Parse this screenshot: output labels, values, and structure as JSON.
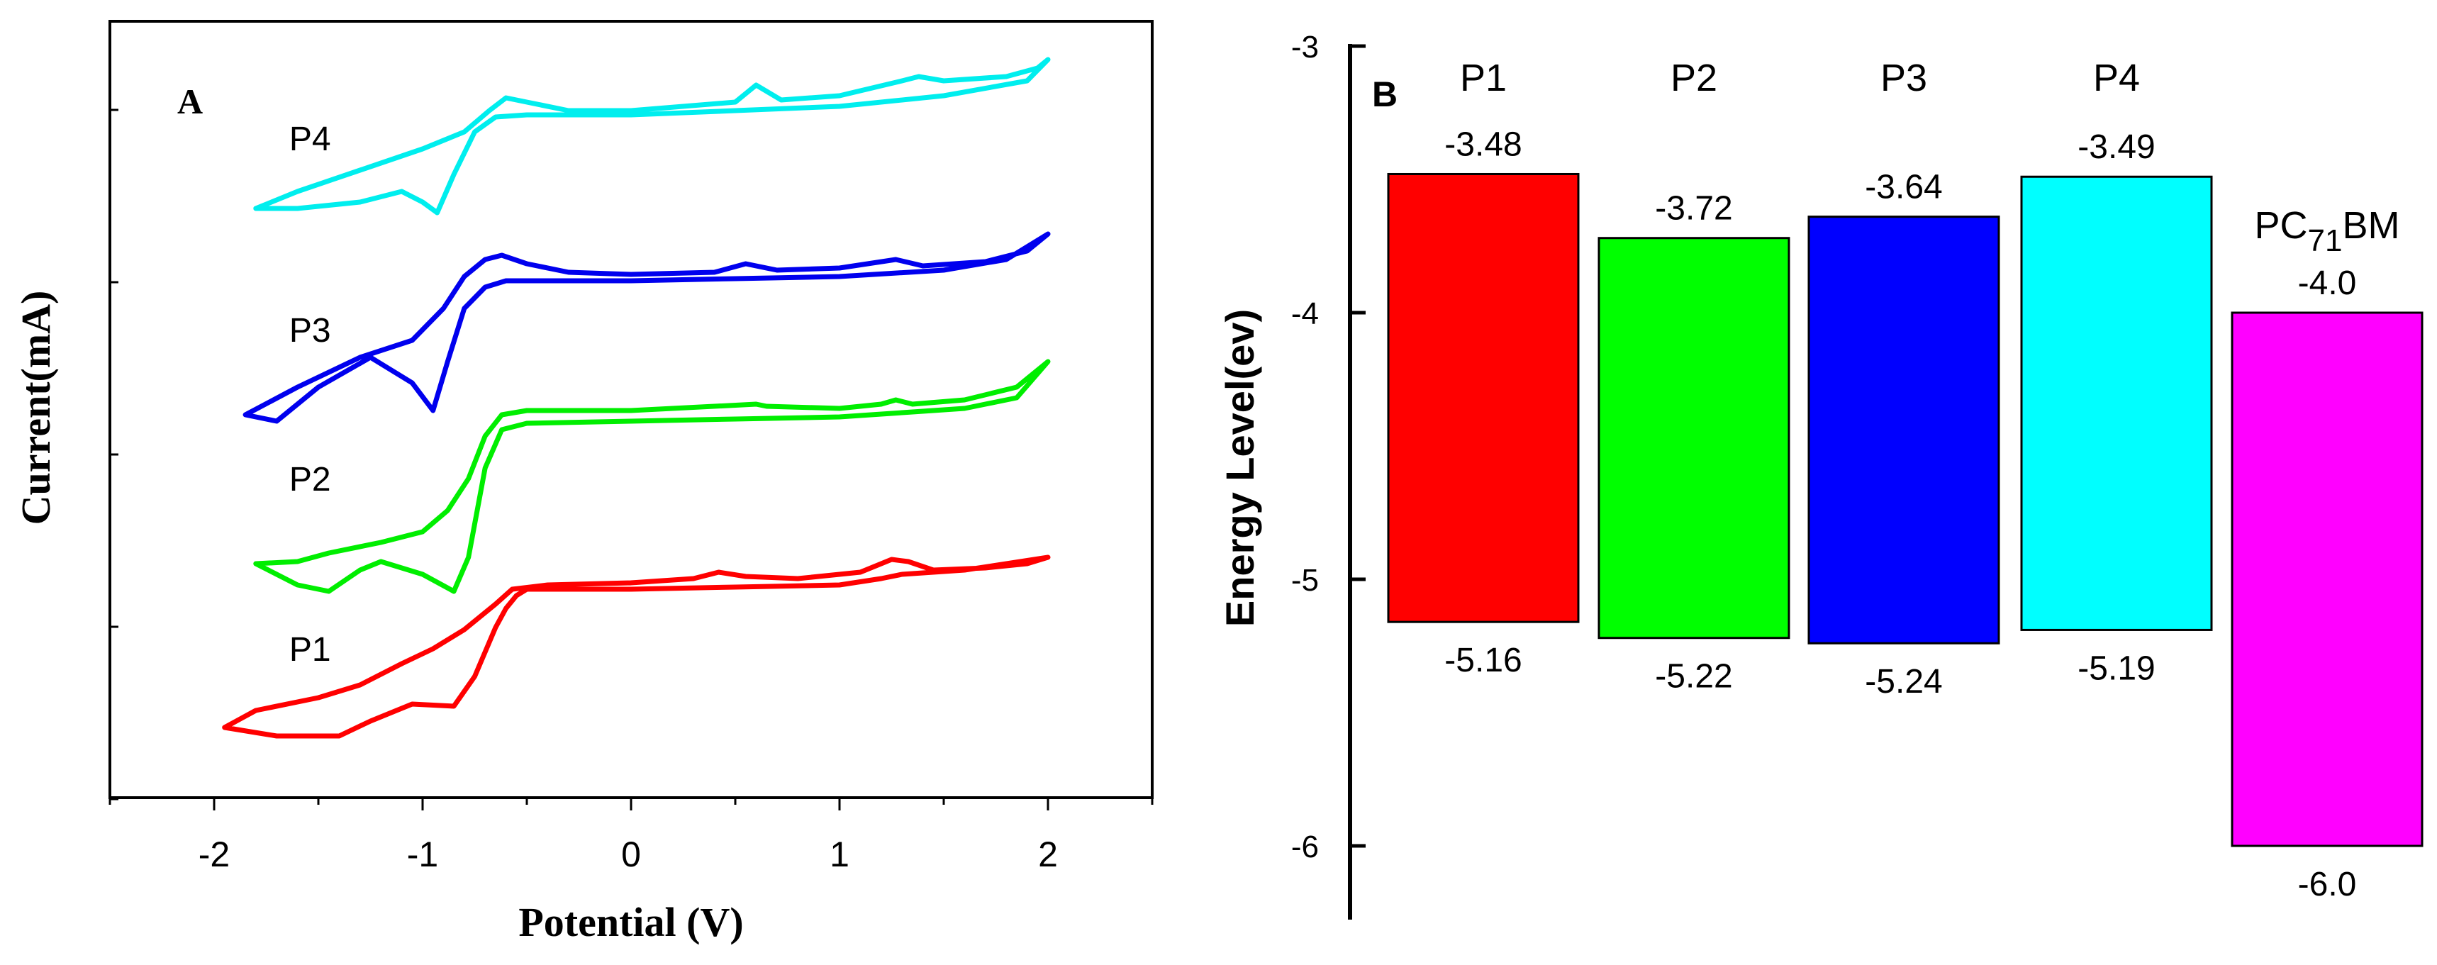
{
  "chart_data": [
    {
      "type": "line",
      "panel_label": "A",
      "xlabel": "Potential (V)",
      "ylabel": "Current(mA)",
      "xlim": [
        -2.5,
        2.5
      ],
      "x_ticks": [
        "-2",
        "-1",
        "0",
        "1",
        "2"
      ],
      "y_tick_labels_shown": false,
      "grid": false,
      "series": [
        {
          "name": "P1",
          "color": "#ff0000",
          "upper": [
            [
              -1.95,
              -0.92
            ],
            [
              -1.8,
              -0.84
            ],
            [
              -1.5,
              -0.78
            ],
            [
              -1.3,
              -0.72
            ],
            [
              -1.1,
              -0.62
            ],
            [
              -0.95,
              -0.55
            ],
            [
              -0.8,
              -0.46
            ],
            [
              -0.65,
              -0.34
            ],
            [
              -0.57,
              -0.27
            ],
            [
              -0.4,
              -0.25
            ],
            [
              0,
              -0.24
            ],
            [
              0.3,
              -0.22
            ],
            [
              0.42,
              -0.19
            ],
            [
              0.55,
              -0.21
            ],
            [
              0.8,
              -0.22
            ],
            [
              1.1,
              -0.19
            ],
            [
              1.25,
              -0.13
            ],
            [
              1.33,
              -0.14
            ],
            [
              1.45,
              -0.18
            ],
            [
              1.7,
              -0.17
            ],
            [
              1.9,
              -0.15
            ],
            [
              2.0,
              -0.12
            ]
          ],
          "lower": [
            [
              -1.95,
              -0.92
            ],
            [
              -1.7,
              -0.96
            ],
            [
              -1.4,
              -0.96
            ],
            [
              -1.25,
              -0.89
            ],
            [
              -1.05,
              -0.81
            ],
            [
              -0.85,
              -0.82
            ],
            [
              -0.75,
              -0.68
            ],
            [
              -0.65,
              -0.45
            ],
            [
              -0.6,
              -0.36
            ],
            [
              -0.55,
              -0.3
            ],
            [
              -0.5,
              -0.27
            ],
            [
              0,
              -0.27
            ],
            [
              0.5,
              -0.26
            ],
            [
              1.0,
              -0.25
            ],
            [
              1.2,
              -0.22
            ],
            [
              1.3,
              -0.2
            ],
            [
              1.6,
              -0.18
            ],
            [
              2.0,
              -0.12
            ]
          ]
        },
        {
          "name": "P2",
          "color": "#00ee00",
          "upper": [
            [
              -1.8,
              -0.15
            ],
            [
              -1.6,
              -0.14
            ],
            [
              -1.45,
              -0.1
            ],
            [
              -1.2,
              -0.05
            ],
            [
              -1.0,
              0.0
            ],
            [
              -0.88,
              0.1
            ],
            [
              -0.78,
              0.25
            ],
            [
              -0.7,
              0.45
            ],
            [
              -0.62,
              0.55
            ],
            [
              -0.5,
              0.57
            ],
            [
              0,
              0.57
            ],
            [
              0.6,
              0.6
            ],
            [
              0.65,
              0.59
            ],
            [
              1.0,
              0.58
            ],
            [
              1.2,
              0.6
            ],
            [
              1.27,
              0.62
            ],
            [
              1.35,
              0.6
            ],
            [
              1.6,
              0.62
            ],
            [
              1.85,
              0.68
            ],
            [
              2.0,
              0.8
            ]
          ],
          "lower": [
            [
              -1.8,
              -0.15
            ],
            [
              -1.6,
              -0.25
            ],
            [
              -1.45,
              -0.28
            ],
            [
              -1.3,
              -0.18
            ],
            [
              -1.2,
              -0.14
            ],
            [
              -1.0,
              -0.2
            ],
            [
              -0.85,
              -0.28
            ],
            [
              -0.78,
              -0.12
            ],
            [
              -0.7,
              0.3
            ],
            [
              -0.62,
              0.48
            ],
            [
              -0.5,
              0.51
            ],
            [
              0,
              0.52
            ],
            [
              0.5,
              0.53
            ],
            [
              1.0,
              0.54
            ],
            [
              1.3,
              0.56
            ],
            [
              1.6,
              0.58
            ],
            [
              1.85,
              0.63
            ],
            [
              2.0,
              0.8
            ]
          ]
        },
        {
          "name": "P3",
          "color": "#0000ee",
          "upper": [
            [
              -1.85,
              0.55
            ],
            [
              -1.6,
              0.68
            ],
            [
              -1.3,
              0.82
            ],
            [
              -1.05,
              0.9
            ],
            [
              -0.9,
              1.05
            ],
            [
              -0.8,
              1.2
            ],
            [
              -0.7,
              1.28
            ],
            [
              -0.62,
              1.3
            ],
            [
              -0.5,
              1.26
            ],
            [
              -0.3,
              1.22
            ],
            [
              0,
              1.21
            ],
            [
              0.4,
              1.22
            ],
            [
              0.55,
              1.26
            ],
            [
              0.7,
              1.23
            ],
            [
              1.0,
              1.24
            ],
            [
              1.27,
              1.28
            ],
            [
              1.4,
              1.25
            ],
            [
              1.7,
              1.27
            ],
            [
              1.9,
              1.32
            ],
            [
              2.0,
              1.4
            ]
          ],
          "lower": [
            [
              -1.85,
              0.55
            ],
            [
              -1.7,
              0.52
            ],
            [
              -1.5,
              0.68
            ],
            [
              -1.25,
              0.82
            ],
            [
              -1.05,
              0.7
            ],
            [
              -0.95,
              0.57
            ],
            [
              -0.88,
              0.8
            ],
            [
              -0.8,
              1.05
            ],
            [
              -0.7,
              1.15
            ],
            [
              -0.6,
              1.18
            ],
            [
              -0.3,
              1.18
            ],
            [
              0,
              1.18
            ],
            [
              0.5,
              1.19
            ],
            [
              1.0,
              1.2
            ],
            [
              1.5,
              1.23
            ],
            [
              1.8,
              1.28
            ],
            [
              2.0,
              1.4
            ]
          ]
        },
        {
          "name": "P4",
          "color": "#00eeee",
          "upper": [
            [
              -1.8,
              1.52
            ],
            [
              -1.6,
              1.6
            ],
            [
              -1.3,
              1.7
            ],
            [
              -1.0,
              1.8
            ],
            [
              -0.8,
              1.88
            ],
            [
              -0.68,
              1.98
            ],
            [
              -0.6,
              2.04
            ],
            [
              -0.5,
              2.02
            ],
            [
              -0.3,
              1.98
            ],
            [
              0,
              1.98
            ],
            [
              0.5,
              2.02
            ],
            [
              0.6,
              2.1
            ],
            [
              0.72,
              2.03
            ],
            [
              1.0,
              2.05
            ],
            [
              1.3,
              2.12
            ],
            [
              1.38,
              2.14
            ],
            [
              1.5,
              2.12
            ],
            [
              1.8,
              2.14
            ],
            [
              1.95,
              2.18
            ],
            [
              2.0,
              2.22
            ]
          ],
          "lower": [
            [
              -1.8,
              1.52
            ],
            [
              -1.6,
              1.52
            ],
            [
              -1.3,
              1.55
            ],
            [
              -1.1,
              1.6
            ],
            [
              -1.0,
              1.55
            ],
            [
              -0.93,
              1.5
            ],
            [
              -0.85,
              1.68
            ],
            [
              -0.75,
              1.88
            ],
            [
              -0.65,
              1.95
            ],
            [
              -0.5,
              1.96
            ],
            [
              0,
              1.96
            ],
            [
              0.5,
              1.98
            ],
            [
              1.0,
              2.0
            ],
            [
              1.5,
              2.05
            ],
            [
              1.9,
              2.12
            ],
            [
              2.0,
              2.22
            ]
          ]
        }
      ]
    },
    {
      "type": "bar",
      "panel_label": "B",
      "ylabel": "Energy Level(ev)",
      "ylim": [
        -6.3,
        -3.0
      ],
      "y_ticks": [
        "-3",
        "-4",
        "-5",
        "-6"
      ],
      "grid": false,
      "bars": [
        {
          "name": "P1",
          "lumo": "-3.48",
          "homo": "-5.16",
          "color": "#ff0000"
        },
        {
          "name": "P2",
          "lumo": "-3.72",
          "homo": "-5.22",
          "color": "#00ff00"
        },
        {
          "name": "P3",
          "lumo": "-3.64",
          "homo": "-5.24",
          "color": "#0000ff"
        },
        {
          "name": "P4",
          "lumo": "-3.49",
          "homo": "-5.19",
          "color": "#00ffff"
        },
        {
          "name": "PC",
          "name_sub": "71",
          "name_suffix": "BM",
          "lumo": "-4.0",
          "homo": "-6.0",
          "color": "#ff00ff"
        }
      ]
    }
  ]
}
